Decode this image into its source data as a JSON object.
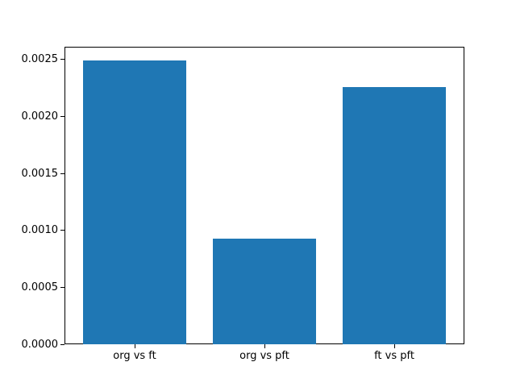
{
  "chart_data": {
    "type": "bar",
    "title": "",
    "xlabel": "",
    "ylabel": "",
    "categories": [
      "org vs ft",
      "org vs pft",
      "ft vs pft"
    ],
    "values": [
      0.00249,
      0.00093,
      0.00226
    ],
    "bar_width": 0.8,
    "xlim": [
      -0.54,
      2.54
    ],
    "ylim": [
      0,
      0.002613
    ],
    "yticks": [
      0,
      0.0005,
      0.001,
      0.0015,
      0.002,
      0.0025
    ],
    "ytick_labels": [
      "0.0000",
      "0.0005",
      "0.0010",
      "0.0015",
      "0.0020",
      "0.0025"
    ],
    "grid": false,
    "legend": "none",
    "colors": {
      "bar_fill": "#1f77b4",
      "spine": "#000000",
      "tick_text": "#000000",
      "background": "#ffffff"
    }
  }
}
